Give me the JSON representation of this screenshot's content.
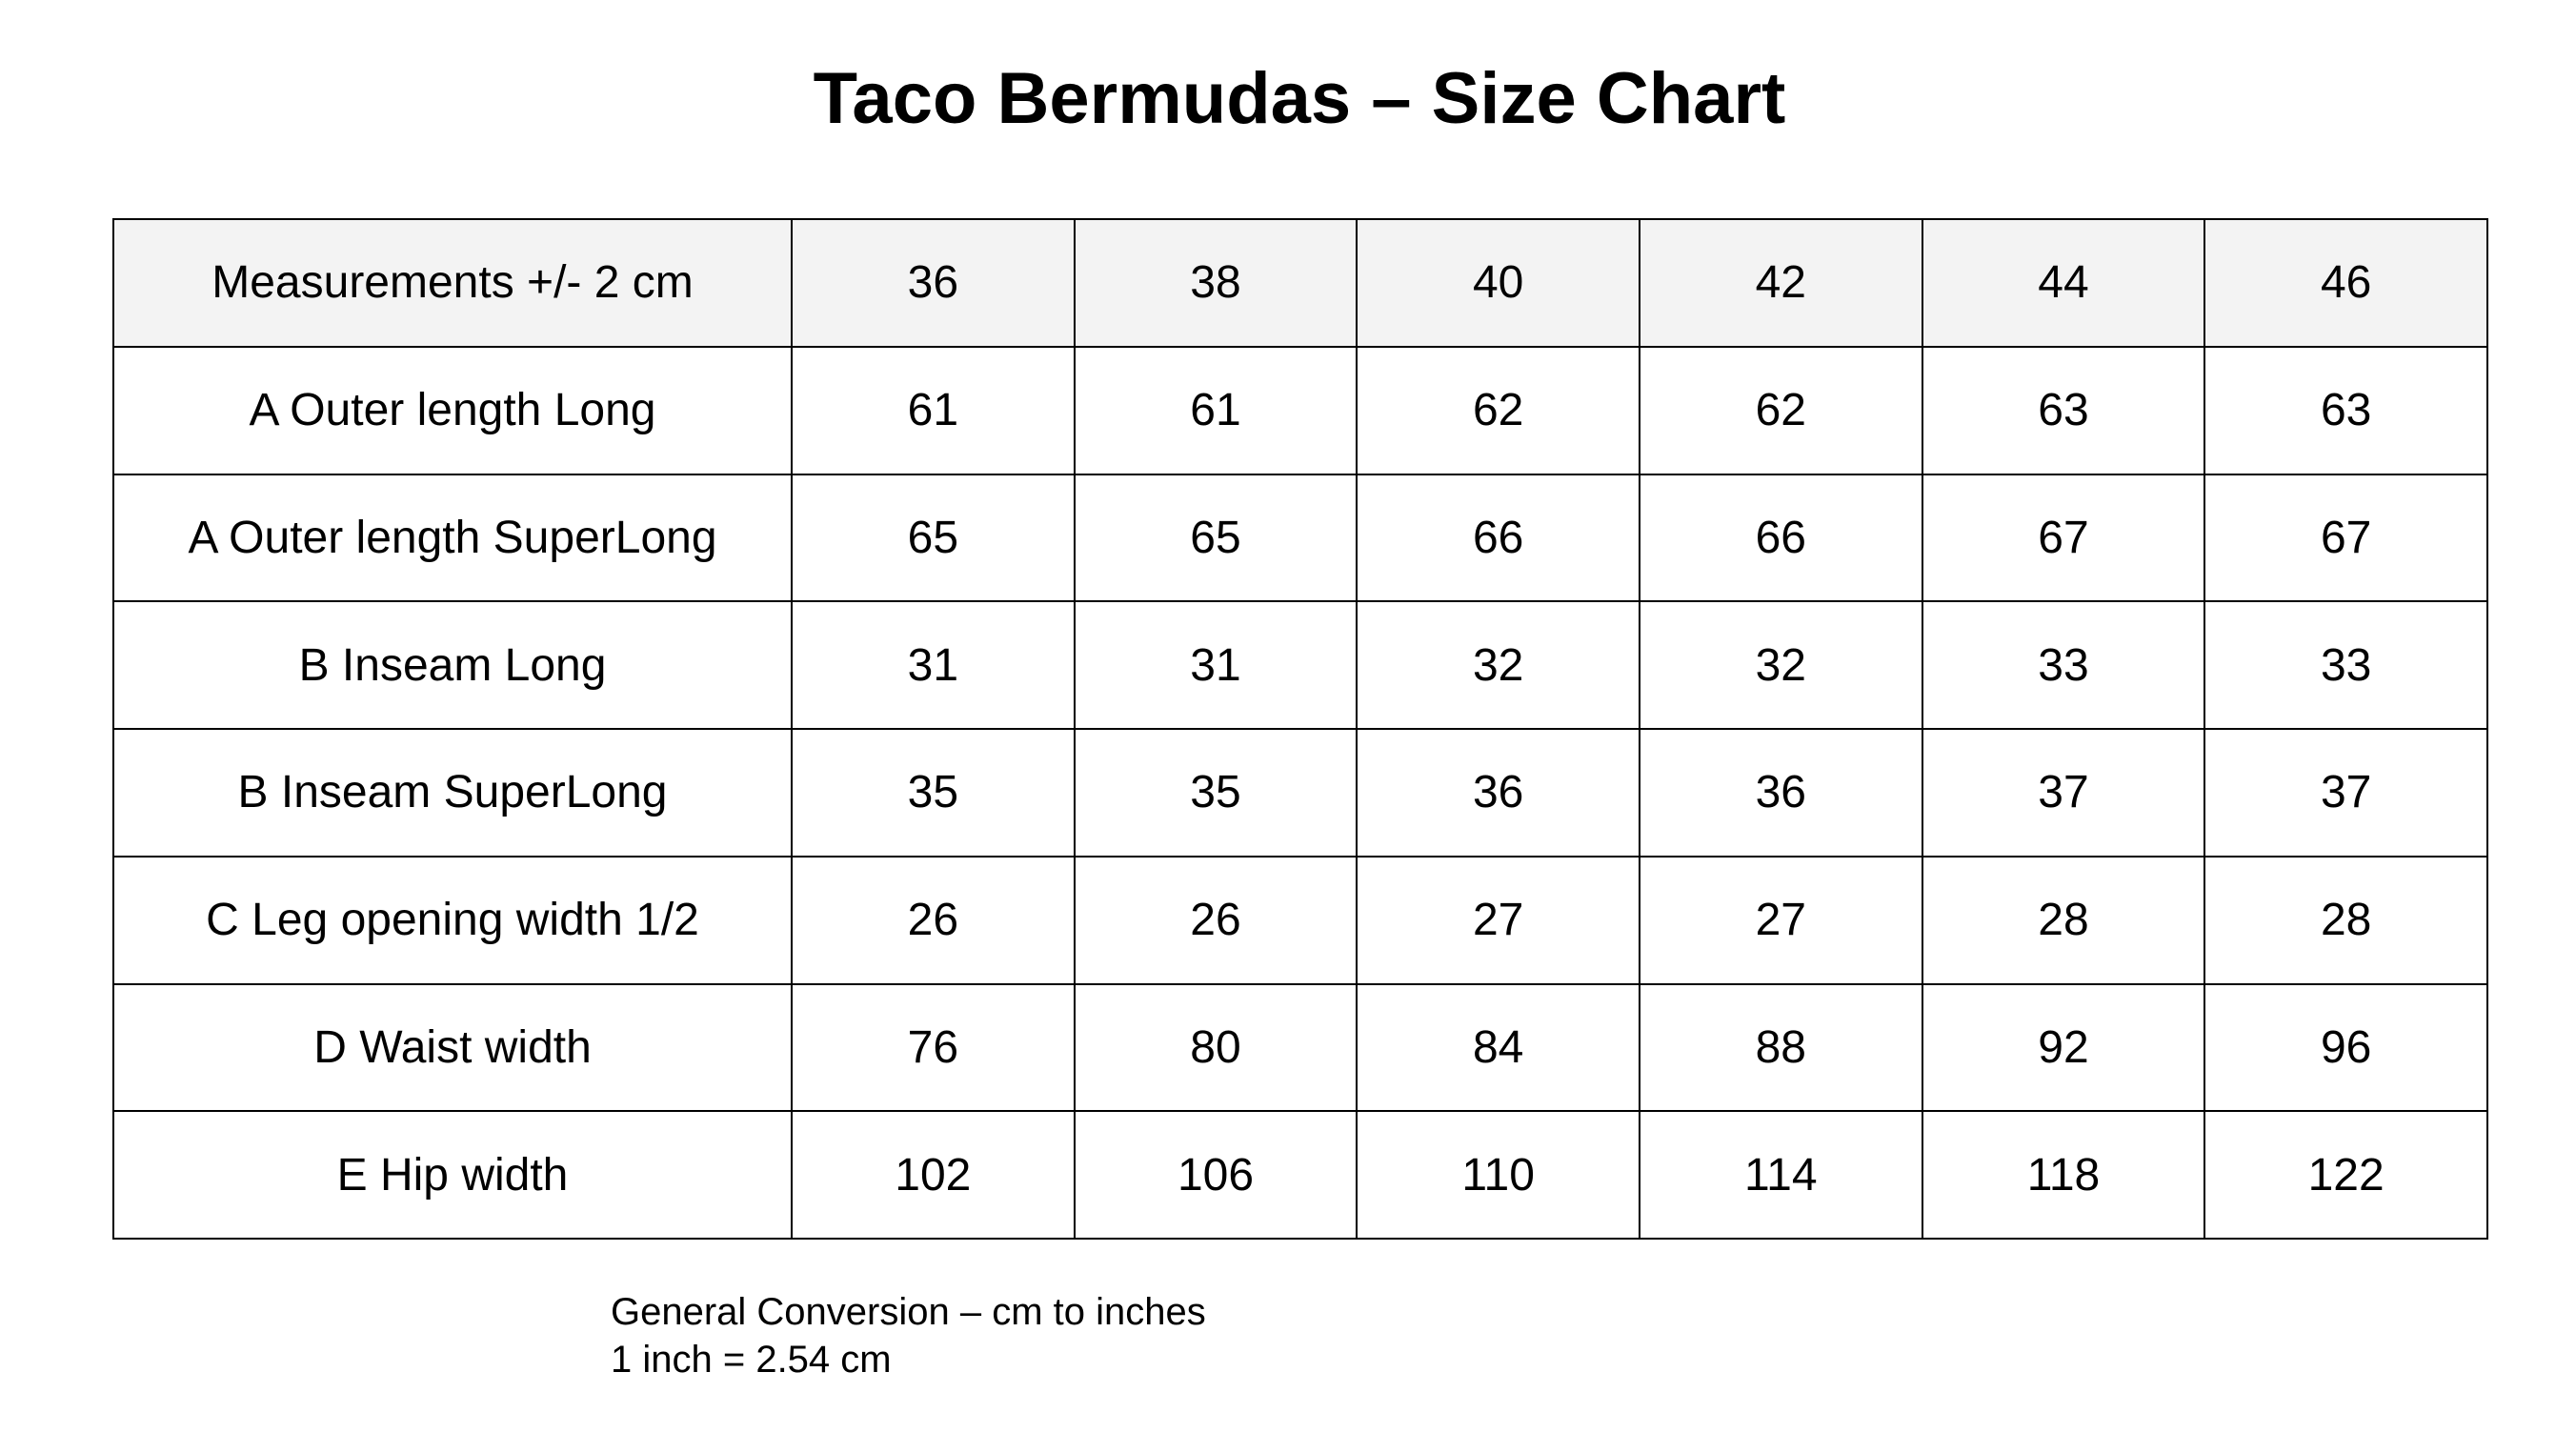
{
  "title": "Taco Bermudas – Size Chart",
  "table": {
    "header": [
      "Measurements +/- 2 cm",
      "36",
      "38",
      "40",
      "42",
      "44",
      "46"
    ],
    "rows": [
      [
        "A Outer length Long",
        61,
        61,
        62,
        62,
        63,
        63
      ],
      [
        "A Outer length SuperLong",
        65,
        65,
        66,
        66,
        67,
        67
      ],
      [
        "B Inseam Long",
        31,
        31,
        32,
        32,
        33,
        33
      ],
      [
        "B Inseam SuperLong",
        35,
        35,
        36,
        36,
        37,
        37
      ],
      [
        "C Leg opening width 1/2",
        26,
        26,
        27,
        27,
        28,
        28
      ],
      [
        "D Waist width",
        76,
        80,
        84,
        88,
        92,
        96
      ],
      [
        "E Hip width",
        102,
        106,
        110,
        114,
        118,
        122
      ]
    ]
  },
  "notes": [
    "General Conversion – cm to inches",
    "1 inch = 2.54 cm"
  ]
}
